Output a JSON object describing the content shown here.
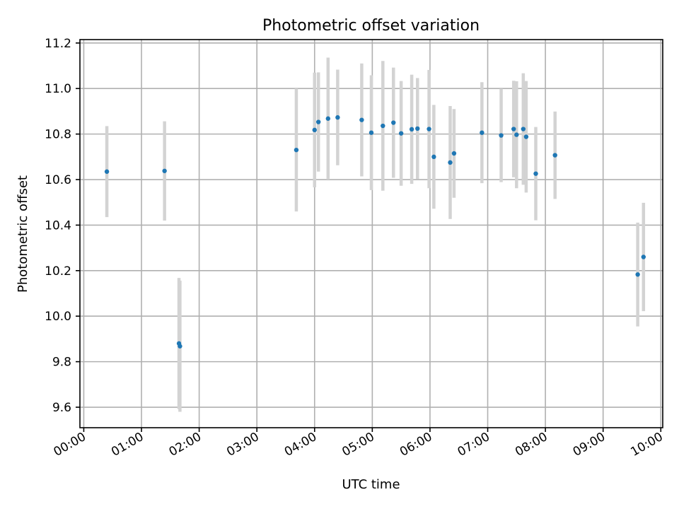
{
  "chart_data": {
    "type": "scatter",
    "title": "Photometric offset variation",
    "xlabel": "UTC time",
    "ylabel": "Photometric offset",
    "x_axis_type": "time",
    "xlim": [
      "-00:04",
      "10:02"
    ],
    "ylim": [
      9.51,
      11.215
    ],
    "grid": true,
    "marker_color": "#1f77b4",
    "errorbar_color": "#d3d3d3",
    "x_ticks": [
      "00:00",
      "01:00",
      "02:00",
      "03:00",
      "04:00",
      "05:00",
      "06:00",
      "07:00",
      "08:00",
      "09:00",
      "10:00"
    ],
    "y_ticks": [
      "9.6",
      "9.8",
      "10.0",
      "10.2",
      "10.4",
      "10.6",
      "10.8",
      "11.0",
      "11.2"
    ],
    "points": [
      {
        "time": "00:24",
        "y": 10.635,
        "yerr": 0.2
      },
      {
        "time": "01:24",
        "y": 10.638,
        "yerr": 0.218
      },
      {
        "time": "01:39",
        "y": 9.88,
        "yerr": 0.288
      },
      {
        "time": "01:40",
        "y": 9.868,
        "yerr": 0.288
      },
      {
        "time": "03:41",
        "y": 10.73,
        "yerr": 0.27
      },
      {
        "time": "04:00",
        "y": 10.818,
        "yerr": 0.252
      },
      {
        "time": "04:04",
        "y": 10.853,
        "yerr": 0.218
      },
      {
        "time": "04:14",
        "y": 10.868,
        "yerr": 0.268
      },
      {
        "time": "04:24",
        "y": 10.873,
        "yerr": 0.21
      },
      {
        "time": "04:49",
        "y": 10.862,
        "yerr": 0.248
      },
      {
        "time": "04:59",
        "y": 10.806,
        "yerr": 0.252
      },
      {
        "time": "05:11",
        "y": 10.836,
        "yerr": 0.285
      },
      {
        "time": "05:22",
        "y": 10.85,
        "yerr": 0.242
      },
      {
        "time": "05:30",
        "y": 10.803,
        "yerr": 0.23
      },
      {
        "time": "05:41",
        "y": 10.821,
        "yerr": 0.24
      },
      {
        "time": "05:47",
        "y": 10.824,
        "yerr": 0.222
      },
      {
        "time": "05:59",
        "y": 10.822,
        "yerr": 0.26
      },
      {
        "time": "06:04",
        "y": 10.7,
        "yerr": 0.228
      },
      {
        "time": "06:21",
        "y": 10.675,
        "yerr": 0.248
      },
      {
        "time": "06:25",
        "y": 10.715,
        "yerr": 0.195
      },
      {
        "time": "06:54",
        "y": 10.806,
        "yerr": 0.222
      },
      {
        "time": "07:14",
        "y": 10.794,
        "yerr": 0.205
      },
      {
        "time": "07:27",
        "y": 10.822,
        "yerr": 0.212
      },
      {
        "time": "07:30",
        "y": 10.797,
        "yerr": 0.235
      },
      {
        "time": "07:37",
        "y": 10.822,
        "yerr": 0.245
      },
      {
        "time": "07:40",
        "y": 10.788,
        "yerr": 0.245
      },
      {
        "time": "07:50",
        "y": 10.626,
        "yerr": 0.205
      },
      {
        "time": "08:10",
        "y": 10.707,
        "yerr": 0.192
      },
      {
        "time": "09:36",
        "y": 10.183,
        "yerr": 0.228
      },
      {
        "time": "09:42",
        "y": 10.26,
        "yerr": 0.238
      }
    ]
  }
}
